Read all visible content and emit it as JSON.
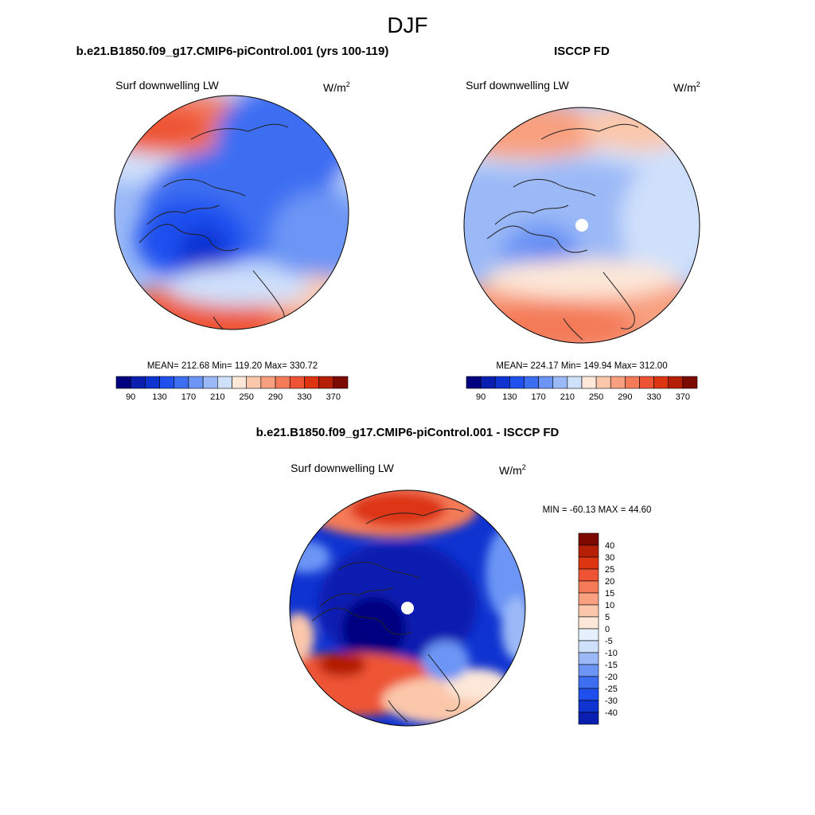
{
  "figure": {
    "title": "DJF"
  },
  "chart_data": [
    {
      "type": "heatmap",
      "projection": "north-polar-stereographic",
      "title": "b.e21.B1850.f09_g17.CMIP6-piControl.001 (yrs 100-119)",
      "variable": "Surf downwelling LW",
      "units_base": "W/m",
      "units_exp": "2",
      "stats": {
        "mean_label": "MEAN=",
        "mean": "212.68",
        "min_label": "Min=",
        "min": "119.20",
        "max_label": "Max=",
        "max": "330.72"
      },
      "colorbar": {
        "orientation": "horizontal",
        "levels": [
          90,
          110,
          130,
          150,
          170,
          190,
          210,
          230,
          250,
          270,
          290,
          310,
          330,
          350,
          370
        ],
        "tick_labels": [
          "90",
          "130",
          "170",
          "210",
          "250",
          "290",
          "330",
          "370"
        ],
        "colors": [
          "#000080",
          "#0a1fb0",
          "#0f33d1",
          "#1f50ee",
          "#3d6ef2",
          "#6c95f5",
          "#9bb9f7",
          "#cfe0fb",
          "#fde7d8",
          "#fbc7ab",
          "#f8a080",
          "#f47a58",
          "#ee5434",
          "#dd3412",
          "#b41f06",
          "#7d0a00"
        ]
      }
    },
    {
      "type": "heatmap",
      "projection": "north-polar-stereographic",
      "title": "ISCCP FD",
      "variable": "Surf downwelling LW",
      "units_base": "W/m",
      "units_exp": "2",
      "stats": {
        "mean_label": "MEAN=",
        "mean": "224.17",
        "min_label": "Min=",
        "min": "149.94",
        "max_label": "Max=",
        "max": "312.00"
      },
      "colorbar": {
        "orientation": "horizontal",
        "levels": [
          90,
          110,
          130,
          150,
          170,
          190,
          210,
          230,
          250,
          270,
          290,
          310,
          330,
          350,
          370
        ],
        "tick_labels": [
          "90",
          "130",
          "170",
          "210",
          "250",
          "290",
          "330",
          "370"
        ],
        "colors": [
          "#000080",
          "#0a1fb0",
          "#0f33d1",
          "#1f50ee",
          "#3d6ef2",
          "#6c95f5",
          "#9bb9f7",
          "#cfe0fb",
          "#fde7d8",
          "#fbc7ab",
          "#f8a080",
          "#f47a58",
          "#ee5434",
          "#dd3412",
          "#b41f06",
          "#7d0a00"
        ]
      }
    },
    {
      "type": "heatmap",
      "projection": "north-polar-stereographic",
      "title": "b.e21.B1850.f09_g17.CMIP6-piControl.001 - ISCCP FD",
      "variable": "Surf downwelling LW",
      "units_base": "W/m",
      "units_exp": "2",
      "stats_label": "MIN = -60.13 MAX =  44.60",
      "stats": {
        "min": -60.13,
        "max": 44.6
      },
      "colorbar": {
        "orientation": "vertical",
        "tick_labels": [
          "40",
          "30",
          "25",
          "20",
          "15",
          "10",
          "5",
          "0",
          "-5",
          "-10",
          "-15",
          "-20",
          "-25",
          "-30",
          "-40"
        ],
        "colors": [
          "#7d0a00",
          "#b41f06",
          "#dd3412",
          "#ee5434",
          "#f47a58",
          "#f8a080",
          "#fbc7ab",
          "#fde7d8",
          "#e6effc",
          "#cfe0fb",
          "#9bb9f7",
          "#6c95f5",
          "#3d6ef2",
          "#1f50ee",
          "#0f33d1",
          "#0a1fb0"
        ]
      }
    }
  ]
}
